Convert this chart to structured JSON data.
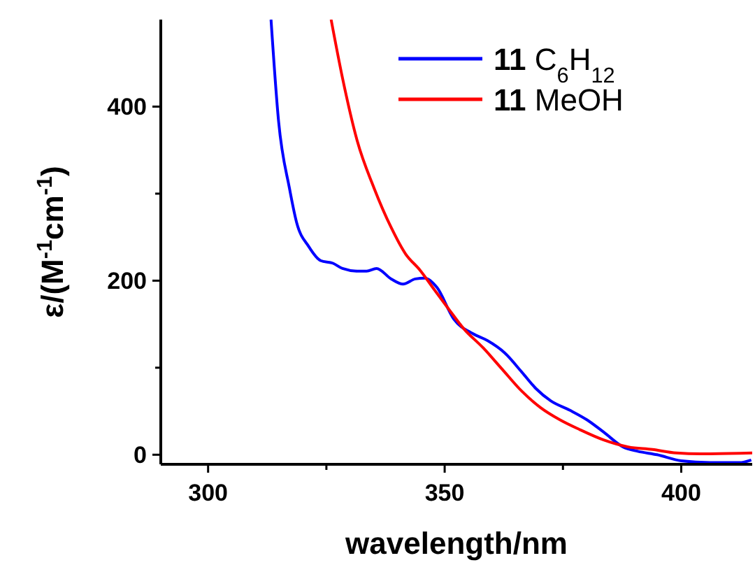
{
  "chart_data": {
    "type": "line",
    "xlabel": "wavelength/nm",
    "ylabel": "ε/(M$^{-1}$cm$^{-1}$)",
    "xlim": [
      290,
      415
    ],
    "ylim": [
      -11,
      500
    ],
    "xticks": [
      300,
      {
        "value": 325,
        "label": null
      },
      350,
      {
        "value": 375,
        "label": null
      },
      400
    ],
    "yticks": [
      0,
      {
        "value": 100,
        "label": null
      },
      200,
      {
        "value": 300,
        "label": null
      },
      400
    ],
    "legend": "top right",
    "grid": false,
    "series": [
      {
        "name": "11 C$_{6}$H$_{12}$",
        "color": "#0000ff",
        "x": [
          313.3,
          314.9,
          317.2,
          318.7,
          321.3,
          323.8,
          326.4,
          328.4,
          331.5,
          333.5,
          335.6,
          338.7,
          341.2,
          343.8,
          345.8,
          348.4,
          351.9,
          356,
          359.1,
          362.7,
          366.3,
          369.3,
          372.4,
          376.5,
          380.1,
          383.6,
          387.7,
          390.8,
          394.9,
          400,
          406.1,
          412.3,
          414.8
        ],
        "values": [
          500,
          383,
          306,
          267,
          239,
          223,
          220,
          214,
          211,
          211,
          214,
          202,
          196,
          202,
          203,
          192,
          156,
          139,
          131,
          117,
          95,
          76,
          62,
          51,
          40,
          26,
          9,
          4,
          0,
          -7,
          -9,
          -9,
          -6
        ]
      },
      {
        "name": "11 MeOH",
        "color": "#ff0000",
        "x": [
          326,
          328.4,
          331.5,
          335.1,
          338.7,
          341.7,
          344.8,
          347.9,
          350.9,
          354,
          358.1,
          362.2,
          366.3,
          370.3,
          374.4,
          378.5,
          383.6,
          388.8,
          393.9,
          399,
          404.1,
          415
        ],
        "values": [
          500,
          433,
          361,
          306,
          261,
          231,
          212,
          189,
          167,
          145,
          123,
          98,
          73,
          54,
          40,
          29,
          17,
          9,
          6,
          2,
          1,
          2
        ]
      }
    ]
  }
}
